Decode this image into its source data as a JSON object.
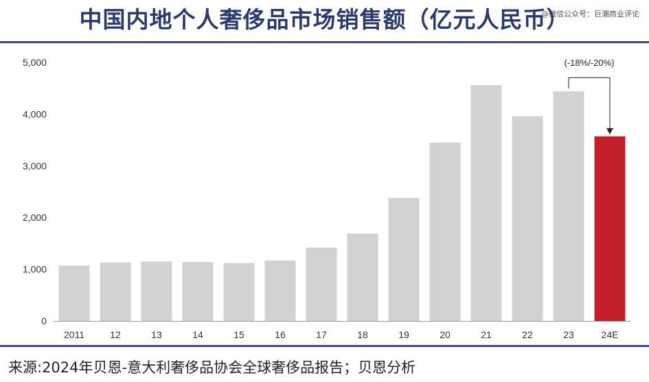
{
  "title": "中国内地个人奢侈品市场销售额（亿元人民币）",
  "watermark": "@微信公众号：巨潮商业评论",
  "source": "来源:2024年贝恩-意大利奢侈品协会全球奢侈品报告；贝恩分析",
  "chart_data": {
    "type": "bar",
    "title": "中国内地个人奢侈品市场销售额（亿元人民币）",
    "xlabel": "",
    "ylabel": "",
    "categories": [
      "2011",
      "12",
      "13",
      "14",
      "15",
      "16",
      "17",
      "18",
      "19",
      "20",
      "21",
      "22",
      "23",
      "24E"
    ],
    "values": [
      1070,
      1130,
      1150,
      1140,
      1120,
      1170,
      1420,
      1690,
      2380,
      3450,
      4560,
      3960,
      4440,
      3570
    ],
    "highlight_index": 13,
    "bar_color": "#d2d2d2",
    "highlight_color": "#c4202a",
    "ylim": [
      0,
      5000
    ],
    "yticks": [
      0,
      1000,
      2000,
      3000,
      4000,
      5000
    ],
    "ytick_labels": [
      "0",
      "1,000",
      "2,000",
      "3,000",
      "4,000",
      "5,000"
    ],
    "grid": false,
    "annotation": {
      "text": "(-18%/-20%)",
      "from_category": "23",
      "to_category": "24E"
    }
  }
}
